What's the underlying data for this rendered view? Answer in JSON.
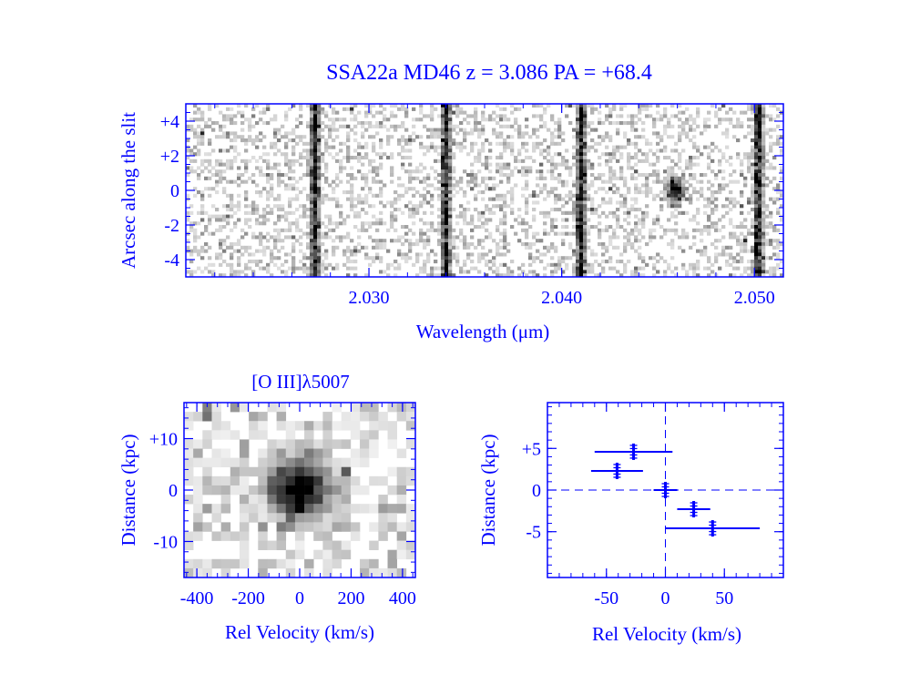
{
  "colors": {
    "axis": "#0000ff",
    "pixel": "#000000",
    "background": "#ffffff"
  },
  "title": "SSA22a MD46   z = 3.086   PA = +68.4",
  "chart_data": [
    {
      "type": "heatmap",
      "panel": "spectrum",
      "title": "",
      "xlabel": "Wavelength (μm)",
      "ylabel": "Arcsec along the slit",
      "xlim": [
        2.0205,
        2.0515
      ],
      "ylim": [
        -5,
        5
      ],
      "xticks": [
        2.03,
        2.04,
        2.05
      ],
      "xtick_labels": [
        "2.030",
        "2.040",
        "2.050"
      ],
      "yticks": [
        4,
        2,
        0,
        -2,
        -4
      ],
      "ytick_labels": [
        "+4",
        "+2",
        "0",
        "-2",
        "-4"
      ],
      "sky_lines_um": [
        2.0272,
        2.034,
        2.041,
        2.0502
      ],
      "emission_blob": {
        "wavelength_um": 2.0459,
        "arcsec": 0.0,
        "label": "[O III]λ5007"
      }
    },
    {
      "type": "heatmap",
      "panel": "oiii_zoom",
      "title": "[O III]λ5007",
      "xlabel": "Rel Velocity (km/s)",
      "ylabel": "Distance (kpc)",
      "xlim": [
        -450,
        450
      ],
      "ylim": [
        -17,
        17
      ],
      "xticks": [
        -400,
        -200,
        0,
        200,
        400
      ],
      "xtick_labels": [
        "-400",
        "-200",
        "0",
        "200",
        "400"
      ],
      "yticks": [
        10,
        0,
        -10
      ],
      "ytick_labels": [
        "+10",
        "0",
        "-10"
      ],
      "peak": {
        "velocity": 0,
        "distance": 0
      }
    },
    {
      "type": "scatter",
      "panel": "rotation_curve",
      "title": "",
      "xlabel": "Rel Velocity (km/s)",
      "ylabel": "Distance (kpc)",
      "xlim": [
        -100,
        100
      ],
      "ylim": [
        -10.5,
        10.5
      ],
      "xticks": [
        -50,
        0,
        50
      ],
      "xtick_labels": [
        "-50",
        "0",
        "50"
      ],
      "yticks": [
        5,
        0,
        -5
      ],
      "ytick_labels": [
        "+5",
        "0",
        "-5"
      ],
      "zero_lines": true,
      "points": [
        {
          "x": -27,
          "y": 4.6,
          "xerr": 33
        },
        {
          "x": -41,
          "y": 2.3,
          "xerr": 22
        },
        {
          "x": 0,
          "y": 0.0,
          "xerr": 10
        },
        {
          "x": 24,
          "y": -2.3,
          "xerr": 14
        },
        {
          "x": 40,
          "y": -4.6,
          "xerr": 40
        }
      ]
    }
  ]
}
